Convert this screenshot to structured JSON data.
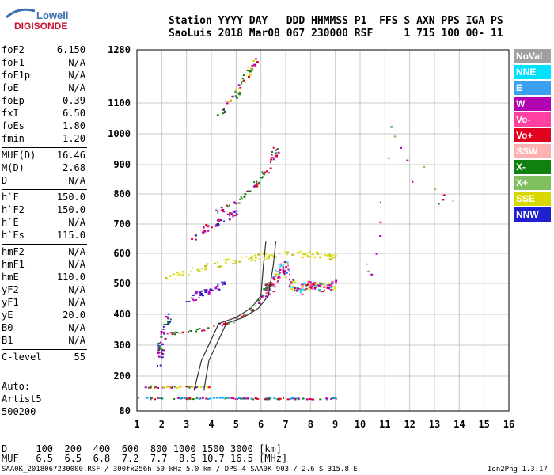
{
  "logo": {
    "line1": "Lowell",
    "line2": "DIGISONDE"
  },
  "header": {
    "row1": "Station YYYY DAY   DDD HHMMSS P1  FFS S AXN PPS IGA PS",
    "row2": "SaoLuis 2018 Mar08 067 230000 RSF     1 715 100 00- 11"
  },
  "params_group1": [
    {
      "label": "foF2",
      "value": "6.150"
    },
    {
      "label": "foF1",
      "value": "N/A"
    },
    {
      "label": "foF1p",
      "value": "N/A"
    },
    {
      "label": "foE",
      "value": "N/A"
    },
    {
      "label": "foEp",
      "value": "0.39"
    },
    {
      "label": "fxI",
      "value": "6.50"
    },
    {
      "label": "foEs",
      "value": "1.80"
    },
    {
      "label": "fmin",
      "value": "1.20"
    }
  ],
  "params_group2": [
    {
      "label": "MUF(D)",
      "value": "16.46"
    },
    {
      "label": "M(D)",
      "value": "2.68"
    },
    {
      "label": "D",
      "value": "N/A"
    }
  ],
  "params_group3": [
    {
      "label": "h`F",
      "value": "150.0"
    },
    {
      "label": "h`F2",
      "value": "150.0"
    },
    {
      "label": "h`E",
      "value": "N/A"
    },
    {
      "label": "h`Es",
      "value": "115.0"
    }
  ],
  "params_group4": [
    {
      "label": "hmF2",
      "value": "N/A"
    },
    {
      "label": "hmF1",
      "value": "N/A"
    },
    {
      "label": "hmE",
      "value": "110.0"
    },
    {
      "label": "yF2",
      "value": "N/A"
    },
    {
      "label": "yF1",
      "value": "N/A"
    },
    {
      "label": "yE",
      "value": "20.0"
    },
    {
      "label": "B0",
      "value": "N/A"
    },
    {
      "label": "B1",
      "value": "N/A"
    }
  ],
  "params_group5": [
    {
      "label": "C-level",
      "value": "55"
    }
  ],
  "autoscaling": {
    "line1": "Auto:",
    "line2": "Artist5",
    "line3": "500200"
  },
  "chart_data": {
    "type": "scatter",
    "title": "",
    "xlabel": "",
    "ylabel": "",
    "xlim": [
      1,
      16
    ],
    "ylim": [
      80,
      1280
    ],
    "x_ticks": [
      "1",
      "2",
      "3",
      "4",
      "5",
      "6",
      "7",
      "8",
      "9",
      "10",
      "11",
      "12",
      "13",
      "14",
      "15",
      "16"
    ],
    "y_ticks": [
      "80",
      "200",
      "300",
      "400",
      "500",
      "600",
      "700",
      "800",
      "900",
      "1000",
      "1100",
      "1280"
    ],
    "grid": true,
    "legend_position": "right",
    "legend": [
      {
        "name": "NoVal",
        "color": "#a0a0a0",
        "text": "#ffffff"
      },
      {
        "name": "NNE",
        "color": "#00e0ff",
        "text": "#ffffff"
      },
      {
        "name": "E",
        "color": "#3aa0f0",
        "text": "#ffffff"
      },
      {
        "name": "W",
        "color": "#b000b0",
        "text": "#ffffff"
      },
      {
        "name": "Vo-",
        "color": "#ff40a0",
        "text": "#ffffff"
      },
      {
        "name": "Vo+",
        "color": "#e00020",
        "text": "#ffffff"
      },
      {
        "name": "SSW",
        "color": "#ffb0b0",
        "text": "#ffffff"
      },
      {
        "name": "X-",
        "color": "#108010",
        "text": "#ffffff"
      },
      {
        "name": "X+",
        "color": "#80c060",
        "text": "#ffffff"
      },
      {
        "name": "SSE",
        "color": "#d8d800",
        "text": "#ffffff"
      },
      {
        "name": "NNW",
        "color": "#2020d0",
        "text": "#ffffff"
      }
    ],
    "traces": [
      {
        "name": "Es-low",
        "colors": [
          "#e00020",
          "#00a0ff",
          "#b000b0",
          "#108010"
        ],
        "points": [
          [
            1.1,
            125
          ],
          [
            2,
            125
          ],
          [
            3,
            125
          ],
          [
            4,
            125
          ],
          [
            5,
            125
          ],
          [
            6,
            125
          ],
          [
            7,
            125
          ],
          [
            8,
            125
          ],
          [
            9,
            125
          ]
        ],
        "spread": 6,
        "density": 90
      },
      {
        "name": "Es-mid",
        "colors": [
          "#e00020",
          "#d8d800",
          "#108010",
          "#b000b0"
        ],
        "points": [
          [
            1.3,
            165
          ],
          [
            2,
            165
          ],
          [
            3,
            165
          ],
          [
            3.8,
            165
          ]
        ],
        "spread": 6,
        "density": 40
      },
      {
        "name": "F2-O",
        "colors": [
          "#e00020",
          "#108010",
          "#b000b0",
          "#80c060"
        ],
        "points": [
          [
            2.2,
            340
          ],
          [
            3,
            345
          ],
          [
            4,
            360
          ],
          [
            4.8,
            380
          ],
          [
            5.5,
            410
          ],
          [
            6,
            450
          ],
          [
            6.2,
            480
          ],
          [
            6.3,
            510
          ]
        ],
        "spread": 8,
        "density": 80
      },
      {
        "name": "F2-blob",
        "colors": [
          "#b000b0",
          "#ff40a0",
          "#e00020",
          "#d8d800",
          "#00e0ff"
        ],
        "points": [
          [
            6.3,
            480
          ],
          [
            6.6,
            520
          ],
          [
            6.9,
            560
          ],
          [
            7.2,
            500
          ],
          [
            7.6,
            480
          ],
          [
            8,
            500
          ],
          [
            8.5,
            490
          ],
          [
            9,
            500
          ]
        ],
        "spread": 30,
        "density": 170
      },
      {
        "name": "F2-2hop",
        "colors": [
          "#d8d800",
          "#c0c000",
          "#e8e860"
        ],
        "points": [
          [
            2.2,
            520
          ],
          [
            3,
            540
          ],
          [
            4,
            560
          ],
          [
            5,
            580
          ],
          [
            6,
            590
          ],
          [
            7,
            600
          ],
          [
            8,
            600
          ],
          [
            9,
            590
          ]
        ],
        "spread": 20,
        "density": 120
      },
      {
        "name": "F2-3hop",
        "colors": [
          "#e00020",
          "#b000b0",
          "#108010"
        ],
        "points": [
          [
            4.2,
            740
          ],
          [
            5,
            780
          ],
          [
            5.6,
            820
          ],
          [
            6,
            860
          ],
          [
            6.4,
            900
          ],
          [
            6.6,
            960
          ]
        ],
        "spread": 14,
        "density": 60
      },
      {
        "name": "F2-4hop",
        "colors": [
          "#d8d800",
          "#b000b0",
          "#108010",
          "#e00020"
        ],
        "points": [
          [
            4.2,
            1060
          ],
          [
            4.8,
            1120
          ],
          [
            5.3,
            1180
          ],
          [
            5.8,
            1250
          ]
        ],
        "spread": 18,
        "density": 50
      },
      {
        "name": "low-purple",
        "colors": [
          "#2020d0",
          "#b000b0",
          "#108010"
        ],
        "points": [
          [
            1.8,
            230
          ],
          [
            1.9,
            280
          ],
          [
            2,
            320
          ],
          [
            2.1,
            360
          ],
          [
            2.3,
            400
          ]
        ],
        "spread": 25,
        "density": 50
      },
      {
        "name": "purple-mid",
        "colors": [
          "#b000b0",
          "#2020d0"
        ],
        "points": [
          [
            3,
            440
          ],
          [
            3.5,
            470
          ],
          [
            4,
            480
          ],
          [
            4.5,
            500
          ]
        ],
        "spread": 20,
        "density": 40
      },
      {
        "name": "purple-high",
        "colors": [
          "#b000b0",
          "#2020d0",
          "#e00020"
        ],
        "points": [
          [
            3.2,
            650
          ],
          [
            3.8,
            690
          ],
          [
            4.5,
            720
          ],
          [
            5,
            740
          ]
        ],
        "spread": 20,
        "density": 40
      },
      {
        "name": "scatter-far",
        "colors": [
          "#e00020",
          "#108010",
          "#80c060",
          "#b000b0"
        ],
        "points": [
          [
            10,
            560
          ],
          [
            10.5,
            550
          ],
          [
            11.2,
            1020
          ],
          [
            12.1,
            830
          ],
          [
            13,
            920
          ],
          [
            13,
            770
          ],
          [
            13.7,
            790
          ]
        ],
        "spread": 40,
        "density": 20
      }
    ],
    "fit_curves": [
      {
        "name": "F2 O profile",
        "points": [
          [
            3.3,
            150
          ],
          [
            3.6,
            250
          ],
          [
            4.3,
            370
          ],
          [
            5,
            390
          ],
          [
            5.6,
            420
          ],
          [
            6,
            460
          ],
          [
            6.1,
            560
          ],
          [
            6.2,
            640
          ]
        ]
      },
      {
        "name": "F2 X profile",
        "points": [
          [
            3.7,
            150
          ],
          [
            3.9,
            250
          ],
          [
            4.6,
            370
          ],
          [
            5.3,
            390
          ],
          [
            5.9,
            420
          ],
          [
            6.3,
            460
          ],
          [
            6.5,
            560
          ],
          [
            6.6,
            640
          ]
        ]
      }
    ]
  },
  "muf_table": {
    "d_row": "D     100  200  400  600  800 1000 1500 3000 [km]",
    "muf_row": "MUF   6.5  6.5  6.8  7.2  7.7  8.5 10.7 16.5 [MHz]"
  },
  "footer": {
    "left": "SAA0K_2018067230000.RSF / 300fx256h 50 kHz 5.0 km / DPS-4 SAA0K 903 / 2.6 S 315.8 E",
    "right": "Ion2Png 1.3.17"
  }
}
